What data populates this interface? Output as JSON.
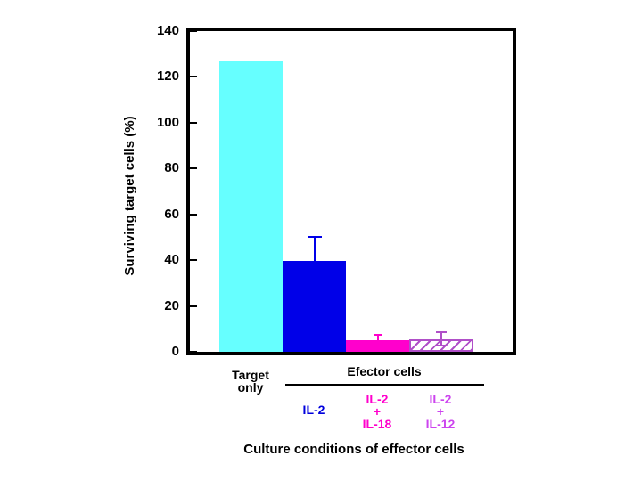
{
  "chart_data": {
    "type": "bar",
    "title": "",
    "ylabel": "Surviving target cells (%)",
    "xlabel": "Culture conditions of effector cells",
    "ylim": [
      0,
      140
    ],
    "yticks": [
      0,
      20,
      40,
      60,
      80,
      100,
      120,
      140
    ],
    "grid": false,
    "legend": null,
    "bars": [
      {
        "category": "Target only",
        "value": 127,
        "error_plus": 12,
        "error_minus": 0,
        "color": "#66ffff",
        "pattern": "solid",
        "error_cap": false
      },
      {
        "category": "IL-2",
        "value": 39.5,
        "error_plus": 10.5,
        "error_minus": 0,
        "color": "#0000e8",
        "pattern": "solid",
        "error_cap": true
      },
      {
        "category": "IL-2 + IL-18",
        "value": 5,
        "error_plus": 2.5,
        "error_minus": 0,
        "color": "#ff00cc",
        "pattern": "solid",
        "error_cap": true
      },
      {
        "category": "IL-2 + IL-12",
        "value": 5.5,
        "error_plus": 3,
        "error_minus": 2.7,
        "color": "#b04fc8",
        "pattern": "hatched",
        "error_cap": true
      }
    ],
    "group_header": "Efector cells",
    "group_members": [
      "IL-2",
      "IL-2 + IL-18",
      "IL-2 + IL-12"
    ]
  },
  "labels": {
    "target_only": "Target\nonly",
    "effector_header": "Efector cells",
    "il2": "IL-2",
    "il2_il18": "IL-2\n+\nIL-18",
    "il2_il12": "IL-2\n+\nIL-12",
    "xlabel": "Culture conditions of effector cells",
    "ylabel": "Surviving target cells (%)"
  },
  "colors": {
    "axis": "#000000",
    "target_only_bar": "#66ffff",
    "il2_bar": "#0000e8",
    "il2_il18_bar": "#ff00cc",
    "il2_il12_hatch": "#b04fc8",
    "il2_label": "#0000dd",
    "il2_il18_label": "#ff00cc",
    "il2_il12_label": "#cc44ee"
  }
}
